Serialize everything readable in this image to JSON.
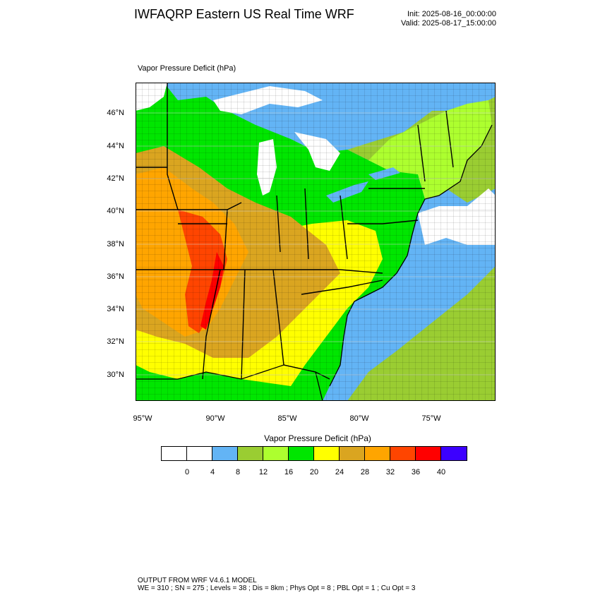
{
  "header": {
    "title": "IWFAQRP Eastern US Real Time WRF",
    "init": "Init: 2025-08-16_00:00:00",
    "valid": "Valid: 2025-08-17_15:00:00"
  },
  "map": {
    "subtitle": "Vapor Pressure Deficit   (hPa)",
    "lat_labels": [
      "46°N",
      "44°N",
      "42°N",
      "40°N",
      "38°N",
      "36°N",
      "34°N",
      "32°N",
      "30°N"
    ],
    "lon_labels": [
      "95°W",
      "90°W",
      "85°W",
      "80°W",
      "75°W"
    ]
  },
  "colorbar": {
    "title": "Vapor Pressure Deficit  (hPa)",
    "labels": [
      "0",
      "4",
      "8",
      "12",
      "16",
      "20",
      "24",
      "28",
      "32",
      "36",
      "40"
    ],
    "colors": [
      "#ffffff",
      "#ffffff",
      "#63b4f5",
      "#9acd32",
      "#adff2f",
      "#00e600",
      "#ffff00",
      "#daa520",
      "#ffa500",
      "#ff4500",
      "#ff0000",
      "#3c00ff"
    ]
  },
  "footer": {
    "line1": "OUTPUT FROM WRF V4.6.1 MODEL",
    "line2": "WE = 310 ; SN = 275 ; Levels = 38 ; Dis = 8km ; Phys Opt = 8 ; PBL Opt = 1 ; Cu Opt = 3"
  }
}
